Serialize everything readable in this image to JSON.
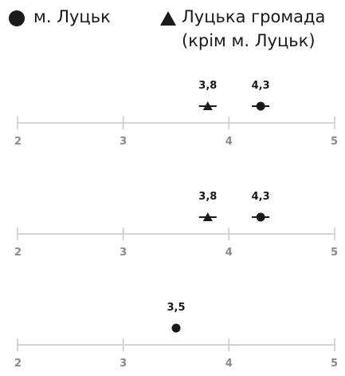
{
  "legend": {
    "circle_label": "м. Луцьк",
    "triangle_label_line1": "Луцька громада",
    "triangle_label_line2": "(крім м. Луцьк)"
  },
  "colors": {
    "marker": "#1a1a1a",
    "axis": "#c8c8c8",
    "tick_text": "#8a8a8a",
    "label_text": "#1a1a1a"
  },
  "chart_data": {
    "type": "scatter",
    "xlim": [
      2,
      5
    ],
    "ticks": [
      2,
      3,
      4,
      5
    ],
    "tick_labels": [
      "2",
      "3",
      "4",
      "5"
    ],
    "series": [
      {
        "name": "м. Луцьк",
        "marker": "circle"
      },
      {
        "name": "Луцька громада (крім м. Луцьк)",
        "marker": "triangle"
      }
    ],
    "panels": [
      {
        "points": [
          {
            "series": "triangle",
            "value": 3.8,
            "label": "3,8",
            "error_bar": true
          },
          {
            "series": "circle",
            "value": 4.3,
            "label": "4,3",
            "error_bar": true
          }
        ]
      },
      {
        "points": [
          {
            "series": "triangle",
            "value": 3.8,
            "label": "3,8",
            "error_bar": true
          },
          {
            "series": "circle",
            "value": 4.3,
            "label": "4,3",
            "error_bar": true
          }
        ]
      },
      {
        "points": [
          {
            "series": "circle",
            "value": 3.5,
            "label": "3,5",
            "error_bar": false
          }
        ]
      }
    ]
  }
}
